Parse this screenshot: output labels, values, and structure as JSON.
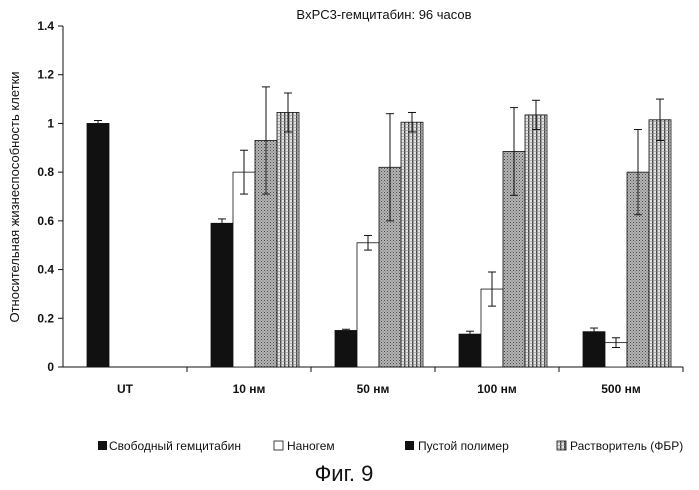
{
  "chart_data": {
    "type": "bar",
    "title": "BxPC3-гемцитабин: 96 часов",
    "ylabel": "Относительная жизнеспособность клетки",
    "xlabel": "",
    "ylim": [
      0,
      1.4
    ],
    "yticks": [
      "0",
      "0.2",
      "0.4",
      "0.6",
      "0.8",
      "1",
      "1.2",
      "1.4"
    ],
    "categories": [
      "UT",
      "10 нм",
      "50 нм",
      "100 нм",
      "500 нм"
    ],
    "series": [
      {
        "name": "Свободный гемцитабин",
        "values": [
          1.0,
          0.59,
          0.15,
          0.135,
          0.145
        ],
        "errors": [
          0.012,
          0.018,
          0.005,
          0.012,
          0.015
        ],
        "color": "#111111"
      },
      {
        "name": "Наногем",
        "values": [
          null,
          0.8,
          0.51,
          0.32,
          0.1
        ],
        "errors": [
          null,
          0.09,
          0.03,
          0.07,
          0.02
        ],
        "color": "#ffffff"
      },
      {
        "name": "Пустой полимер",
        "values": [
          null,
          0.93,
          0.82,
          0.885,
          0.8
        ],
        "errors": [
          null,
          0.22,
          0.22,
          0.18,
          0.175
        ],
        "color": "#9a9a9a"
      },
      {
        "name": "Растворитель (ФБР)",
        "values": [
          null,
          1.045,
          1.005,
          1.035,
          1.015
        ],
        "errors": [
          null,
          0.08,
          0.04,
          0.06,
          0.085
        ],
        "color": "#d0d0d0"
      }
    ],
    "legend_position": "bottom",
    "grid": false
  },
  "caption": "Фиг. 9"
}
